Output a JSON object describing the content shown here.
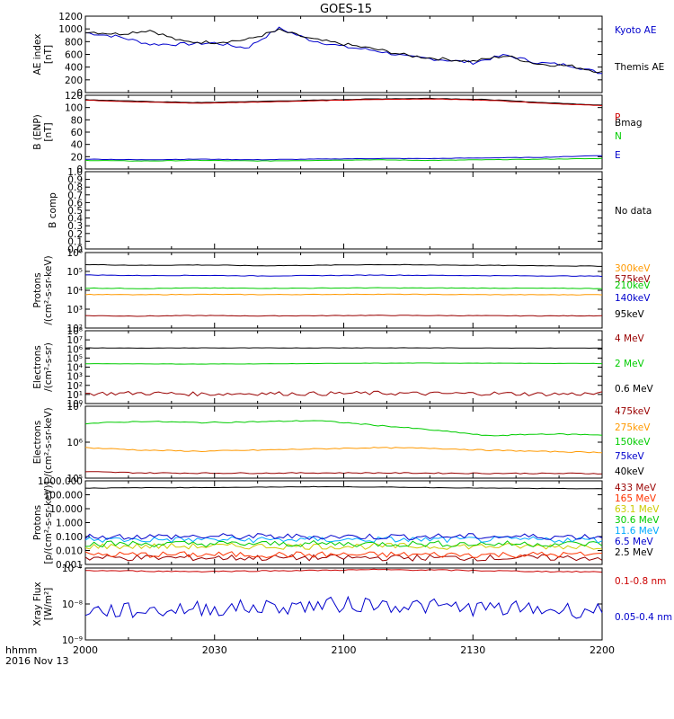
{
  "title": "GOES-15",
  "time_axis": {
    "ticks": [
      "2000",
      "2030",
      "2100",
      "2130",
      "2200"
    ],
    "corner_label": "hhmm",
    "date_label": "2016 Nov 13"
  },
  "chart_data": [
    {
      "type": "line",
      "id": "ae",
      "ylabel": "AE index\n[nT]",
      "scale": "linear",
      "ylim": [
        0,
        1200
      ],
      "yticks": [
        0,
        200,
        400,
        600,
        800,
        1000,
        1200
      ],
      "ytick_labels": [
        "0",
        "200",
        "400",
        "600",
        "800",
        "1000",
        "1200"
      ],
      "series": [
        {
          "name": "Kyoto AE",
          "color": "#0000cc",
          "shape": "ae_kyoto",
          "values": [
            940,
            880,
            760,
            760,
            780,
            700,
            1010,
            820,
            720,
            660,
            560,
            520,
            470,
            590,
            470,
            430,
            300
          ]
        },
        {
          "name": "Themis AE",
          "color": "#000000",
          "shape": "ae_themis",
          "values": [
            960,
            920,
            980,
            800,
            790,
            830,
            980,
            840,
            760,
            680,
            580,
            530,
            490,
            580,
            450,
            420,
            320
          ]
        }
      ]
    },
    {
      "type": "line",
      "id": "bfield",
      "ylabel": "B (ENP)\n[nT]",
      "scale": "linear",
      "ylim": [
        0,
        120
      ],
      "yticks": [
        0,
        20,
        40,
        60,
        80,
        100,
        120
      ],
      "ytick_labels": [
        "0",
        "20",
        "40",
        "60",
        "80",
        "100",
        "120"
      ],
      "series": [
        {
          "name": "Bmag",
          "color": "#000000",
          "shape": "flat",
          "values": [
            113,
            110,
            108,
            110,
            112,
            114,
            115,
            113,
            108,
            104
          ]
        },
        {
          "name": "P",
          "color": "#cc0000",
          "shape": "flat",
          "values": [
            112,
            109,
            107,
            109,
            111,
            113,
            114,
            112,
            107,
            103
          ]
        },
        {
          "name": "N",
          "color": "#00cc00",
          "shape": "flat",
          "values": [
            14,
            13,
            14,
            13,
            14,
            15,
            14,
            15,
            16,
            17
          ]
        },
        {
          "name": "E",
          "color": "#0000cc",
          "shape": "flat",
          "values": [
            16,
            15,
            16,
            15,
            16,
            17,
            17,
            18,
            19,
            22
          ]
        }
      ]
    },
    {
      "type": "line",
      "id": "bcomp",
      "ylabel": "B comp",
      "scale": "linear",
      "ylim": [
        0,
        1
      ],
      "yticks": [
        0,
        0.1,
        0.2,
        0.3,
        0.4,
        0.5,
        0.6,
        0.7,
        0.8,
        0.9,
        1.0
      ],
      "ytick_labels": [
        "0.0",
        "0.1",
        "0.2",
        "0.3",
        "0.4",
        "0.5",
        "0.6",
        "0.7",
        "0.8",
        "0.9",
        "1.0"
      ],
      "note": "No data",
      "series": []
    },
    {
      "type": "line",
      "id": "protons_low",
      "ylabel": "Protons\n/(cm²-s-sr-keV)",
      "scale": "log",
      "ylim": [
        100,
        1000000
      ],
      "yticks": [
        100,
        1000,
        10000,
        100000,
        1000000
      ],
      "ytick_labels": [
        "10²",
        "10³",
        "10⁴",
        "10⁵",
        "10⁶"
      ],
      "series": [
        {
          "name": "575keV",
          "color": "#990000",
          "shape": "flat",
          "values": [
            450,
            430,
            460,
            440,
            450,
            470,
            460,
            450,
            440,
            450
          ]
        },
        {
          "name": "300keV",
          "color": "#ff9900",
          "shape": "flat",
          "values": [
            6000,
            5800,
            6100,
            5900,
            6000,
            6200,
            6000,
            5900,
            5800,
            5900
          ]
        },
        {
          "name": "210keV",
          "color": "#00cc00",
          "shape": "flat",
          "values": [
            13000,
            12500,
            13200,
            12800,
            13000,
            13500,
            13200,
            13000,
            12800,
            12500
          ]
        },
        {
          "name": "140keV",
          "color": "#0000cc",
          "shape": "flat",
          "values": [
            65000,
            60000,
            62000,
            58000,
            60000,
            64000,
            62000,
            60000,
            58000,
            56000
          ]
        },
        {
          "name": "95keV",
          "color": "#000000",
          "shape": "flat",
          "values": [
            230000,
            210000,
            220000,
            200000,
            210000,
            230000,
            220000,
            210000,
            200000,
            190000
          ]
        }
      ]
    },
    {
      "type": "line",
      "id": "electrons_high",
      "ylabel": "Electrons\n/(cm²-s-sr)",
      "scale": "log",
      "ylim": [
        1,
        100000000
      ],
      "yticks": [
        1,
        10,
        100,
        1000,
        10000,
        100000,
        1000000,
        10000000,
        100000000
      ],
      "ytick_labels": [
        "10⁰",
        "10¹",
        "10²",
        "10³",
        "10⁴",
        "10⁵",
        "10⁶",
        "10⁷",
        "10⁸"
      ],
      "series": [
        {
          "name": "4 MeV",
          "color": "#990000",
          "shape": "noisy_log",
          "values": [
            12,
            14,
            11,
            13,
            12,
            14,
            12,
            13,
            11,
            12
          ]
        },
        {
          "name": "2 MeV",
          "color": "#00cc00",
          "shape": "flat",
          "values": [
            24000,
            23000,
            22000,
            23000,
            25000,
            27000,
            28000,
            27000,
            26000,
            25000
          ]
        },
        {
          "name": "0.6 MeV",
          "color": "#000000",
          "shape": "flat",
          "values": [
            1300000,
            1250000,
            1300000,
            1280000,
            1300000,
            1320000,
            1300000,
            1280000,
            1250000,
            1230000
          ]
        }
      ]
    },
    {
      "type": "line",
      "id": "electrons_low",
      "ylabel": "Electrons\n/(cm²-s-sr-keV)",
      "scale": "log",
      "ylim": [
        100000,
        10000000
      ],
      "yticks": [
        100000,
        1000000,
        10000000
      ],
      "ytick_labels": [
        "10⁵",
        "10⁶",
        "10⁷"
      ],
      "series": [
        {
          "name": "475keV",
          "color": "#990000",
          "shape": "flat",
          "values": [
            150000,
            140000,
            138000,
            138000,
            140000,
            140000,
            138000,
            136000,
            135000,
            135000
          ]
        },
        {
          "name": "275keV",
          "color": "#ff9900",
          "shape": "flat",
          "values": [
            700000,
            600000,
            560000,
            600000,
            650000,
            700000,
            680000,
            600000,
            550000,
            520000
          ]
        },
        {
          "name": "150keV",
          "color": "#00cc00",
          "shape": "flat",
          "values": [
            3300000,
            3800000,
            3500000,
            3700000,
            4000000,
            3000000,
            2200000,
            1500000,
            1700000,
            1600000
          ]
        },
        {
          "name": "75keV",
          "color": "#0000cc",
          "shape": "flat",
          "values": []
        },
        {
          "name": "40keV",
          "color": "#000000",
          "shape": "flat",
          "values": []
        }
      ]
    },
    {
      "type": "line",
      "id": "protons_high",
      "ylabel": "Protons\n[p/(cm²-s-sr-keV)]",
      "scale": "log",
      "ylim": [
        0.001,
        1000
      ],
      "yticks": [
        0.001,
        0.01,
        0.1,
        1,
        10,
        100,
        1000
      ],
      "ytick_labels": [
        "0.001",
        "0.010",
        "0.100",
        "1.000",
        "10.000",
        "100.000",
        "1000.000"
      ],
      "series": [
        {
          "name": "433 MeV",
          "color": "#990000",
          "shape": "noisy_log",
          "values": [
            0.003,
            0.003,
            0.003,
            0.003,
            0.003,
            0.003,
            0.003,
            0.003
          ]
        },
        {
          "name": "165 MeV",
          "color": "#ff3300",
          "shape": "noisy_log",
          "values": [
            0.005,
            0.005,
            0.005,
            0.005,
            0.005,
            0.005,
            0.005,
            0.005
          ]
        },
        {
          "name": "63.1 MeV",
          "color": "#cccc00",
          "shape": "noisy_log",
          "values": [
            0.02,
            0.02,
            0.02,
            0.02,
            0.02,
            0.02,
            0.02,
            0.02
          ]
        },
        {
          "name": "30.6 MeV",
          "color": "#00cc00",
          "shape": "noisy_log",
          "values": [
            0.03,
            0.03,
            0.03,
            0.03,
            0.03,
            0.03,
            0.03,
            0.03
          ]
        },
        {
          "name": "11.6 MeV",
          "color": "#00aaff",
          "shape": "noisy_log",
          "values": [
            0.06,
            0.06,
            0.06,
            0.06,
            0.06,
            0.06,
            0.06,
            0.06
          ]
        },
        {
          "name": "6.5 MeV",
          "color": "#0000cc",
          "shape": "noisy_log",
          "values": [
            0.1,
            0.1,
            0.1,
            0.1,
            0.1,
            0.1,
            0.1,
            0.1
          ]
        },
        {
          "name": "2.5 MeV",
          "color": "#000000",
          "shape": "flat",
          "values": [
            300,
            320,
            330,
            350,
            380,
            360,
            330,
            300,
            280,
            270
          ]
        }
      ]
    },
    {
      "type": "line",
      "id": "xray",
      "ylabel": "Xray Flux\n[W/m²]",
      "scale": "log",
      "ylim": [
        1e-09,
        1e-07
      ],
      "yticks": [
        1e-09,
        1e-08,
        1e-07
      ],
      "ytick_labels": [
        "10⁻⁹",
        "10⁻⁸",
        "10⁻⁷"
      ],
      "series": [
        {
          "name": "0.1-0.8 nm",
          "color": "#cc0000",
          "shape": "flat",
          "values": [
            8.5e-08,
            8.2e-08,
            8e-08,
            8.3e-08,
            8.6e-08,
            9e-08,
            8.8e-08,
            8.4e-08,
            8e-08,
            7.8e-08
          ]
        },
        {
          "name": "0.05-0.4 nm",
          "color": "#0000cc",
          "shape": "noisy_log",
          "values": [
            6.5e-09,
            6.5e-09,
            7.5e-09,
            8e-09,
            9e-09,
            1e-08,
            8.5e-09,
            7.5e-09,
            7e-09,
            6.5e-09
          ]
        }
      ]
    }
  ]
}
